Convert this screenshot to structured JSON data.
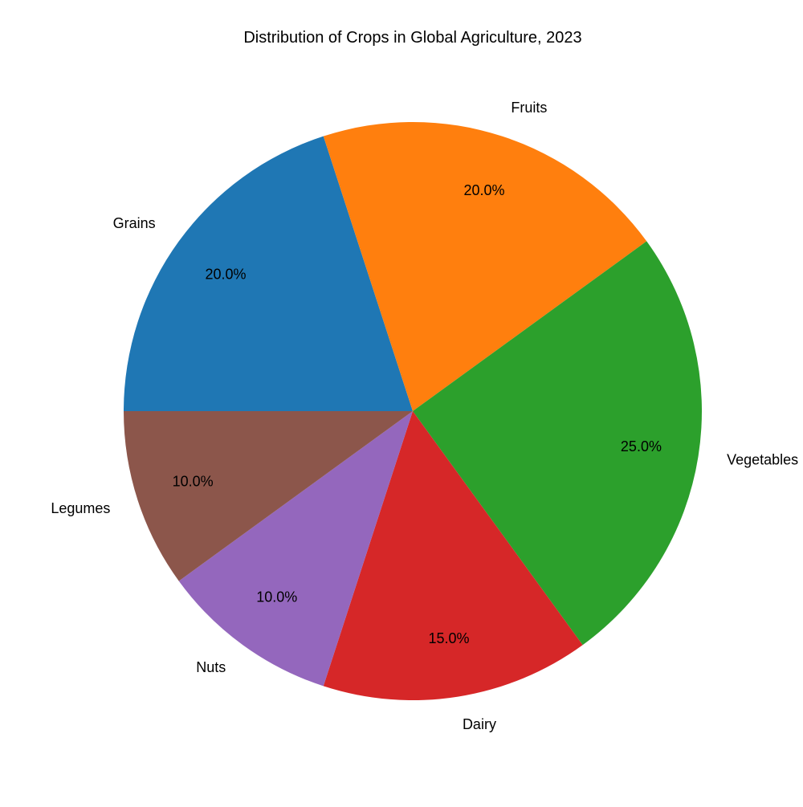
{
  "chart_data": {
    "type": "pie",
    "title": "Distribution of Crops in Global Agriculture, 2023",
    "categories": [
      "Grains",
      "Fruits",
      "Vegetables",
      "Dairy",
      "Nuts",
      "Legumes"
    ],
    "values": [
      20,
      20,
      25,
      15,
      10,
      10
    ],
    "percent_labels": [
      "20.0%",
      "20.0%",
      "25.0%",
      "15.0%",
      "10.0%",
      "10.0%"
    ],
    "colors": [
      "#1f77b4",
      "#ff7f0e",
      "#2ca02c",
      "#d62728",
      "#9467bd",
      "#8c564b"
    ],
    "start_angle_deg": 180,
    "direction": "clockwise",
    "legend": "none"
  }
}
